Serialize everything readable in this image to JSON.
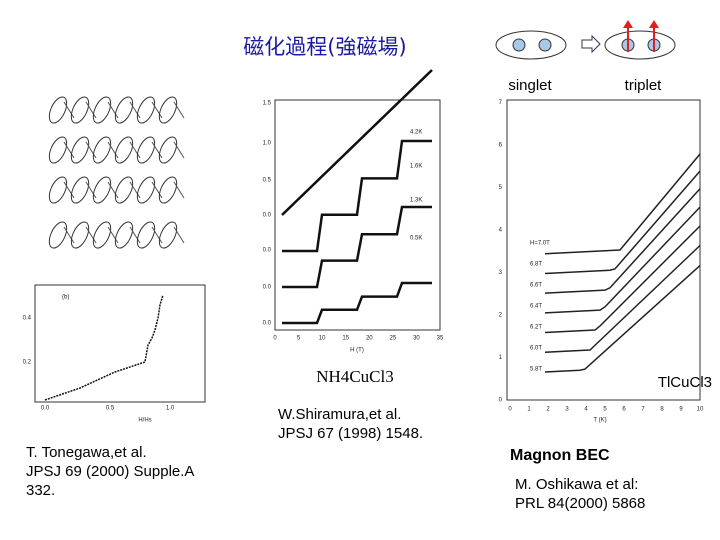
{
  "header": {
    "title": "磁化過程(強磁場)",
    "singlet": "singlet",
    "triplet": "triplet"
  },
  "middle_figure": {
    "compound": "NH4CuCl3",
    "y_ticks": [
      "1.5",
      "1.0",
      "0.5",
      "0.0",
      "0.0",
      "0.0",
      "0.0"
    ],
    "x_ticks": [
      "0",
      "5",
      "10",
      "15",
      "20",
      "25",
      "30",
      "35"
    ],
    "x_label": "H (T)",
    "curve_labels": [
      "4.2K",
      "1.6K",
      "1.3K",
      "0.5K"
    ]
  },
  "right_figure": {
    "compound": "TlCuCl3",
    "y_ticks": [
      "0",
      "1",
      "2",
      "3",
      "4",
      "5",
      "6",
      "7"
    ],
    "x_ticks": [
      "0",
      "1",
      "2",
      "3",
      "4",
      "5",
      "6",
      "7",
      "8",
      "9",
      "10"
    ],
    "x_label": "T (K)",
    "field_labels": [
      "H=7.0T",
      "6.8T",
      "6.6T",
      "6.4T",
      "6.2T",
      "6.0T",
      "5.8T"
    ]
  },
  "left_figure": {
    "panel": "(b)",
    "y_ticks": [
      "0.4",
      "0.2"
    ],
    "x_ticks": [
      "0.0",
      "0.5",
      "1.0"
    ],
    "x_label": "H/Hs"
  },
  "captions": {
    "shiramura": [
      "W.Shiramura,et al.",
      "JPSJ 67 (1998) 1548."
    ],
    "tonegawa": [
      "T. Tonegawa,et al.",
      "JPSJ 69 (2000) Supple.A",
      "332."
    ],
    "bec": "Magnon BEC",
    "oshikawa": [
      "M. Oshikawa et al:",
      "PRL 84(2000) 5868"
    ]
  }
}
